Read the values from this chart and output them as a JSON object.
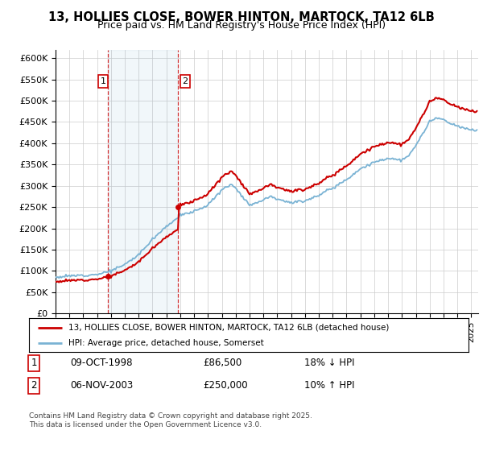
{
  "title": "13, HOLLIES CLOSE, BOWER HINTON, MARTOCK, TA12 6LB",
  "subtitle": "Price paid vs. HM Land Registry's House Price Index (HPI)",
  "ylim": [
    0,
    620000
  ],
  "yticks": [
    0,
    50000,
    100000,
    150000,
    200000,
    250000,
    300000,
    350000,
    400000,
    450000,
    500000,
    550000,
    600000
  ],
  "ytick_labels": [
    "£0",
    "£50K",
    "£100K",
    "£150K",
    "£200K",
    "£250K",
    "£300K",
    "£350K",
    "£400K",
    "£450K",
    "£500K",
    "£550K",
    "£600K"
  ],
  "hpi_color": "#7ab3d4",
  "price_color": "#cc0000",
  "marker_color": "#cc0000",
  "sale1_date": 1998.78,
  "sale1_price": 86500,
  "sale2_date": 2003.85,
  "sale2_price": 250000,
  "legend_label_price": "13, HOLLIES CLOSE, BOWER HINTON, MARTOCK, TA12 6LB (detached house)",
  "legend_label_hpi": "HPI: Average price, detached house, Somerset",
  "footnote_line1": "Contains HM Land Registry data © Crown copyright and database right 2025.",
  "footnote_line2": "This data is licensed under the Open Government Licence v3.0.",
  "table_row1": [
    "1",
    "09-OCT-1998",
    "£86,500",
    "18% ↓ HPI"
  ],
  "table_row2": [
    "2",
    "06-NOV-2003",
    "£250,000",
    "10% ↑ HPI"
  ],
  "grid_color": "#cccccc",
  "title_fontsize": 10.5,
  "subtitle_fontsize": 9
}
